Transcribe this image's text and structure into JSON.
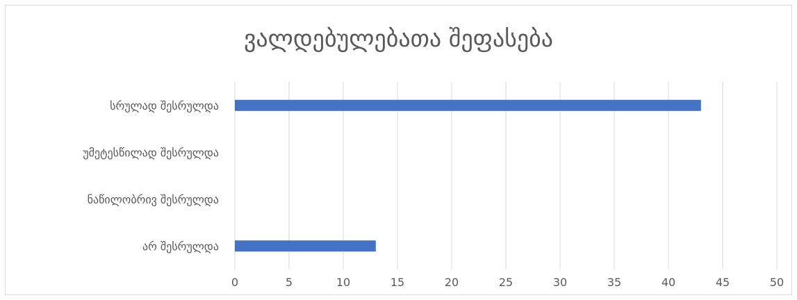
{
  "chart_data": {
    "type": "bar",
    "orientation": "horizontal",
    "title": "ვალდებულებათა შეფასება",
    "categories": [
      "სრულად შესრულდა",
      "უმეტესწილად შესრულდა",
      "ნაწილობრივ შესრულდა",
      "არ შესრულდა"
    ],
    "values": [
      43,
      0,
      0,
      13
    ],
    "xlim": [
      0,
      50
    ],
    "xticks": [
      "0",
      "5",
      "10",
      "15",
      "20",
      "25",
      "30",
      "35",
      "40",
      "45",
      "50"
    ],
    "grid": true,
    "legend": "none",
    "bar_color": "#4472C4",
    "grid_color": "#d9d9d9"
  }
}
